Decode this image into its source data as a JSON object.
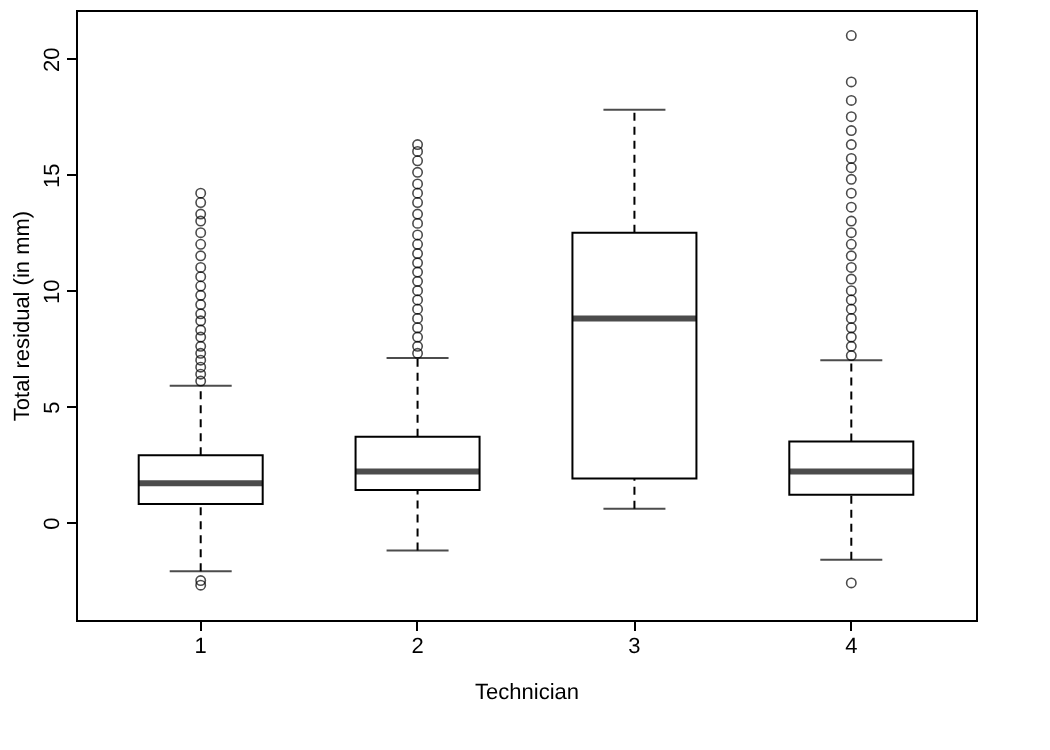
{
  "chart_data": {
    "type": "box",
    "xlabel": "Technician",
    "ylabel": "Total residual (in mm)",
    "categories": [
      "1",
      "2",
      "3",
      "4"
    ],
    "boxes": [
      {
        "low": -2.1,
        "q1": 0.8,
        "median": 1.7,
        "q3": 2.9,
        "high": 5.9,
        "outliers": [
          6.1,
          6.4,
          6.7,
          7.0,
          7.3,
          7.6,
          8.0,
          8.3,
          8.7,
          9.0,
          9.4,
          9.8,
          10.2,
          10.6,
          11.0,
          11.5,
          12.0,
          12.5,
          13.0,
          13.3,
          13.8,
          14.2,
          -2.5,
          -2.7
        ]
      },
      {
        "low": -1.2,
        "q1": 1.4,
        "median": 2.2,
        "q3": 3.7,
        "high": 7.1,
        "outliers": [
          7.3,
          7.6,
          8.0,
          8.4,
          8.8,
          9.2,
          9.6,
          10.0,
          10.4,
          10.8,
          11.2,
          11.6,
          12.0,
          12.4,
          12.9,
          13.3,
          13.8,
          14.2,
          14.6,
          15.1,
          15.6,
          16.0,
          16.3
        ]
      },
      {
        "low": 0.6,
        "q1": 1.9,
        "median": 8.8,
        "q3": 12.5,
        "high": 17.8
      },
      {
        "low": -1.6,
        "q1": 1.2,
        "median": 2.2,
        "q3": 3.5,
        "high": 7.0,
        "outliers": [
          7.2,
          7.6,
          8.0,
          8.4,
          8.8,
          9.2,
          9.6,
          10.0,
          10.5,
          11.0,
          11.5,
          12.0,
          12.5,
          13.0,
          13.6,
          14.2,
          14.8,
          15.3,
          15.7,
          16.3,
          16.9,
          17.5,
          18.2,
          19.0,
          21.0,
          -2.6
        ]
      }
    ],
    "ylim": [
      -4.2,
      22.1
    ],
    "yticks": [
      0,
      5,
      10,
      15,
      20
    ],
    "grid": false
  }
}
